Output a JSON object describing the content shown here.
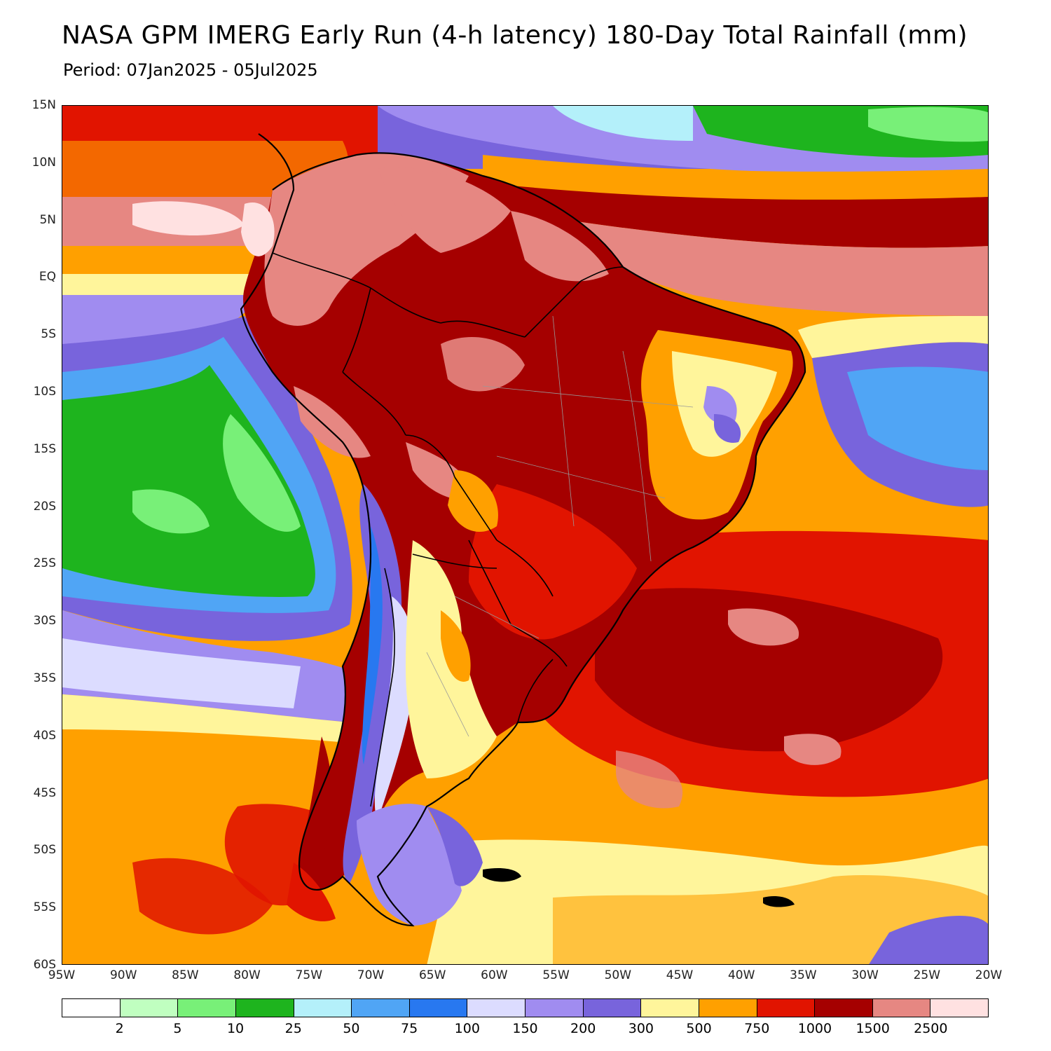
{
  "title": "NASA GPM IMERG Early Run (4-h latency) 180-Day Total Rainfall (mm)",
  "subtitle": "Period: 07Jan2025 - 05Jul2025",
  "map": {
    "lat_range": [
      -60,
      15
    ],
    "lon_range": [
      -95,
      -20
    ],
    "lat_labels": [
      {
        "lat": 15,
        "text": "15N"
      },
      {
        "lat": 10,
        "text": "10N"
      },
      {
        "lat": 5,
        "text": "5N"
      },
      {
        "lat": 0,
        "text": "EQ"
      },
      {
        "lat": -5,
        "text": "5S"
      },
      {
        "lat": -10,
        "text": "10S"
      },
      {
        "lat": -15,
        "text": "15S"
      },
      {
        "lat": -20,
        "text": "20S"
      },
      {
        "lat": -25,
        "text": "25S"
      },
      {
        "lat": -30,
        "text": "30S"
      },
      {
        "lat": -35,
        "text": "35S"
      },
      {
        "lat": -40,
        "text": "40S"
      },
      {
        "lat": -45,
        "text": "45S"
      },
      {
        "lat": -50,
        "text": "50S"
      },
      {
        "lat": -55,
        "text": "55S"
      },
      {
        "lat": -60,
        "text": "60S"
      }
    ],
    "lon_labels": [
      {
        "lon": -95,
        "text": "95W"
      },
      {
        "lon": -90,
        "text": "90W"
      },
      {
        "lon": -85,
        "text": "85W"
      },
      {
        "lon": -80,
        "text": "80W"
      },
      {
        "lon": -75,
        "text": "75W"
      },
      {
        "lon": -70,
        "text": "70W"
      },
      {
        "lon": -65,
        "text": "65W"
      },
      {
        "lon": -60,
        "text": "60W"
      },
      {
        "lon": -55,
        "text": "55W"
      },
      {
        "lon": -50,
        "text": "50W"
      },
      {
        "lon": -45,
        "text": "45W"
      },
      {
        "lon": -40,
        "text": "40W"
      },
      {
        "lon": -35,
        "text": "35W"
      },
      {
        "lon": -30,
        "text": "30W"
      },
      {
        "lon": -25,
        "text": "25W"
      },
      {
        "lon": -20,
        "text": "20W"
      }
    ]
  },
  "colorbar": {
    "colors": [
      "#ffffff",
      "#c0ffc0",
      "#78f078",
      "#1eb41e",
      "#b4f0fa",
      "#50a5f5",
      "#2878f0",
      "#dcdcff",
      "#a08cf0",
      "#7864dc",
      "#fff59b",
      "#ffa000",
      "#e11400",
      "#a50000",
      "#e68782",
      "#ffe1e1"
    ],
    "labels": [
      "2",
      "5",
      "10",
      "25",
      "50",
      "75",
      "100",
      "150",
      "200",
      "300",
      "500",
      "750",
      "1000",
      "1500",
      "2500"
    ]
  }
}
